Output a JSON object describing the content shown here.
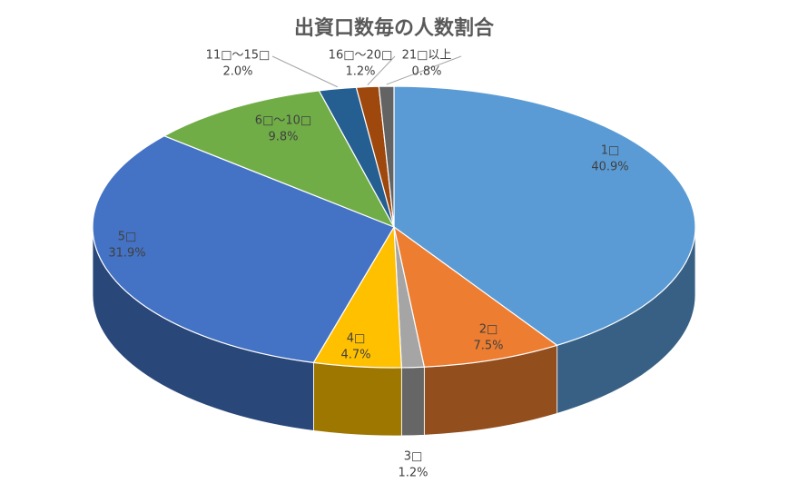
{
  "chart_data": {
    "type": "pie3d",
    "title": "出資口数毎の人数割合",
    "categories": [
      "1□",
      "2□",
      "3□",
      "4□",
      "5□",
      "6□～10□",
      "11□～15□",
      "16□～20□",
      "21□以上"
    ],
    "values": [
      40.9,
      7.5,
      1.2,
      4.7,
      31.9,
      9.8,
      2.0,
      1.2,
      0.8
    ],
    "value_labels": [
      "40.9%",
      "7.5%",
      "1.2%",
      "4.7%",
      "31.9%",
      "9.8%",
      "2.0%",
      "1.2%",
      "0.8%"
    ],
    "colors": [
      "#5b9bd5",
      "#ed7d31",
      "#a5a5a5",
      "#ffc000",
      "#4472c4",
      "#70ad47",
      "#255e91",
      "#9e480e",
      "#636363"
    ]
  }
}
